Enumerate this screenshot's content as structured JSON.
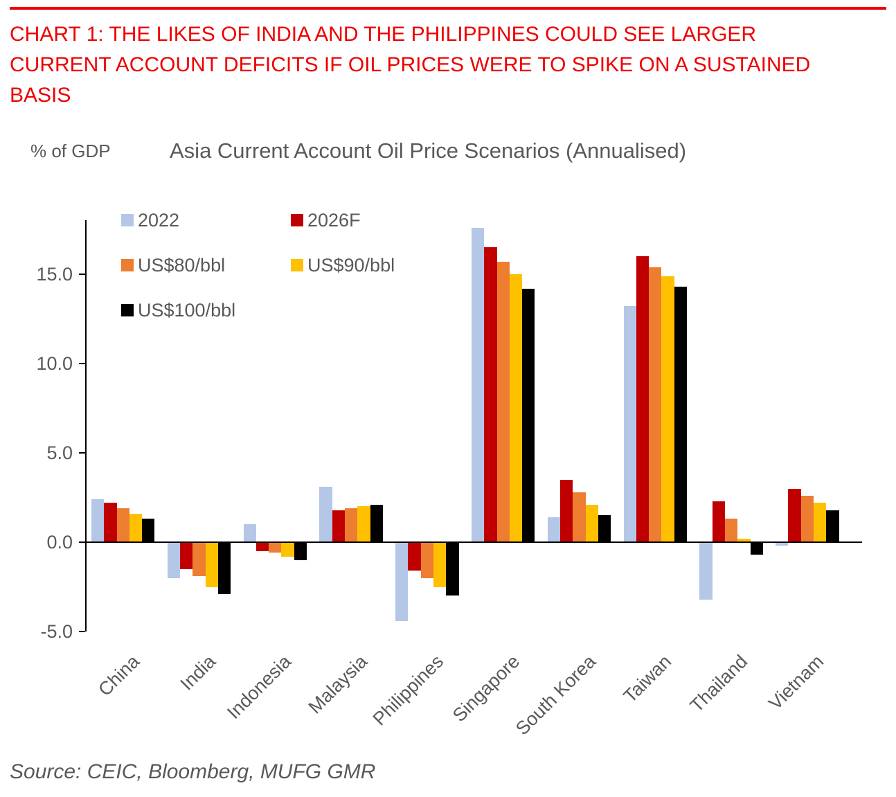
{
  "header": {
    "title": "CHART 1: THE LIKES OF INDIA AND THE PHILIPPINES COULD SEE LARGER CURRENT ACCOUNT DEFICITS IF OIL PRICES WERE TO SPIKE ON A SUSTAINED BASIS",
    "rule_color": "#ee0000"
  },
  "chart_data": {
    "type": "bar",
    "title": "Asia Current Account Oil Price Scenarios (Annualised)",
    "ylabel": "% of GDP",
    "xlabel": "",
    "grid": false,
    "legend_position": "inside-top-left",
    "categories": [
      "China",
      "India",
      "Indonesia",
      "Malaysia",
      "Philippines",
      "Singapore",
      "South Korea",
      "Taiwan",
      "Thailand",
      "Vietnam"
    ],
    "series": [
      {
        "name": "2022",
        "color": "#b4c7e7",
        "values": [
          2.4,
          -2.0,
          1.0,
          3.1,
          -4.4,
          17.6,
          1.4,
          13.2,
          -3.2,
          -0.2
        ]
      },
      {
        "name": "2026F",
        "color": "#c00000",
        "values": [
          2.2,
          -1.5,
          -0.5,
          1.8,
          -1.6,
          16.5,
          3.5,
          16.0,
          2.3,
          3.0
        ]
      },
      {
        "name": "US$80/bbl",
        "color": "#ed7d31",
        "values": [
          1.9,
          -1.9,
          -0.6,
          1.9,
          -2.0,
          15.7,
          2.8,
          15.4,
          1.3,
          2.6
        ]
      },
      {
        "name": "US$90/bbl",
        "color": "#ffc000",
        "values": [
          1.6,
          -2.5,
          -0.8,
          2.0,
          -2.5,
          15.0,
          2.1,
          14.9,
          0.2,
          2.2
        ]
      },
      {
        "name": "US$100/bbl",
        "color": "#000000",
        "values": [
          1.3,
          -2.9,
          -1.0,
          2.1,
          -3.0,
          14.2,
          1.5,
          14.3,
          -0.7,
          1.8
        ]
      }
    ],
    "yticks": [
      -5.0,
      0.0,
      5.0,
      10.0,
      15.0
    ],
    "ylim": [
      -5.0,
      18.0
    ]
  },
  "source": "Source: CEIC, Bloomberg, MUFG GMR",
  "colors": {
    "title_red": "#ee0000",
    "text_gray": "#595959",
    "axis_black": "#000000"
  }
}
